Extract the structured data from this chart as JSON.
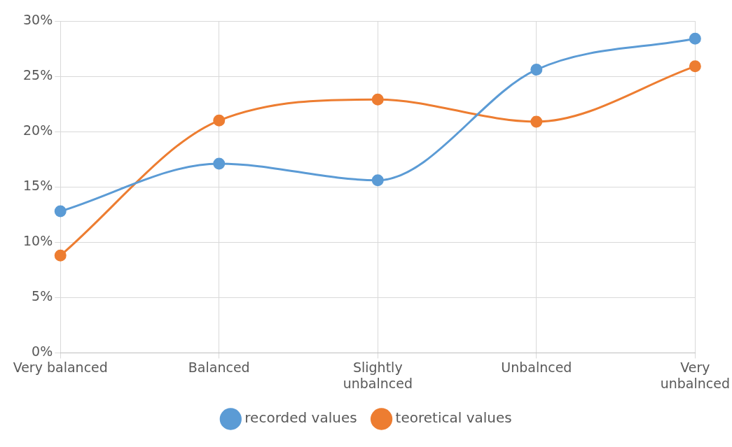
{
  "chart_data": {
    "type": "line",
    "categories": [
      "Very balanced",
      "Balanced",
      "Slightly unbalnced",
      "Unbalnced",
      "Very unbalnced"
    ],
    "series": [
      {
        "name": "recorded values",
        "color": "#5b9bd5",
        "values": [
          12.8,
          17.1,
          15.6,
          25.6,
          28.4
        ]
      },
      {
        "name": "teoretical values",
        "color": "#ed7d31",
        "values": [
          8.8,
          21.0,
          22.9,
          20.9,
          25.9
        ]
      }
    ],
    "ylim": [
      0,
      30
    ],
    "yticks": [
      {
        "value": 0,
        "label": "0%"
      },
      {
        "value": 5,
        "label": "5%"
      },
      {
        "value": 10,
        "label": "10%"
      },
      {
        "value": 15,
        "label": "15%"
      },
      {
        "value": 20,
        "label": "20%"
      },
      {
        "value": 25,
        "label": "25%"
      },
      {
        "value": 30,
        "label": "30%"
      }
    ],
    "grid": true,
    "legend": "bottom",
    "marker": "circle",
    "line_style": "solid"
  }
}
